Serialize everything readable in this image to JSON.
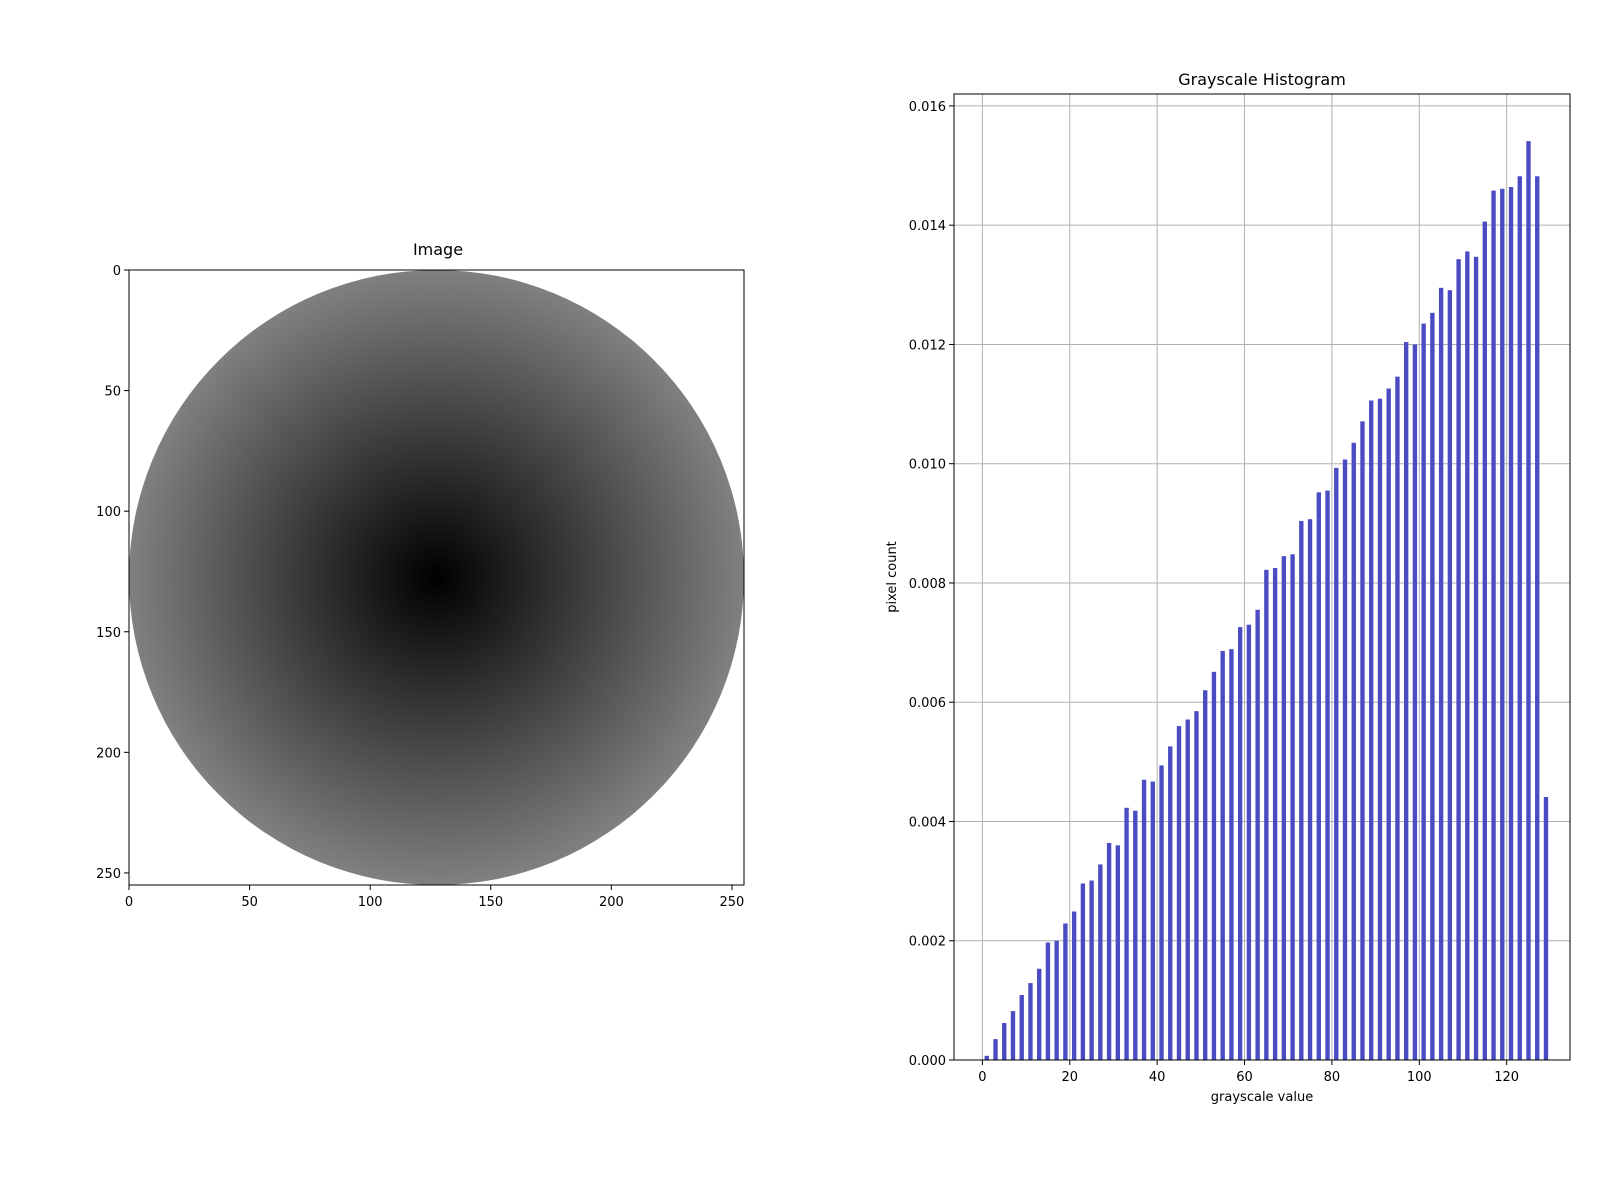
{
  "chart_data": [
    {
      "type": "image",
      "title": "Image",
      "xlim": [
        0,
        255
      ],
      "ylim": [
        255,
        0
      ],
      "x_ticks": [
        0,
        50,
        100,
        150,
        200,
        250
      ],
      "y_ticks": [
        0,
        50,
        100,
        150,
        200,
        250
      ],
      "x_tick_labels": [
        "0",
        "50",
        "100",
        "150",
        "200",
        "250"
      ],
      "y_tick_labels": [
        "0",
        "50",
        "100",
        "150",
        "200",
        "250"
      ],
      "content": {
        "shape": "radial-gradient-disk",
        "center": [
          127.5,
          127.5
        ],
        "radius": 127.5,
        "center_gray": 0,
        "edge_gray": 128,
        "background_gray": 255
      },
      "grid": false
    },
    {
      "type": "bar",
      "title": "Grayscale Histogram",
      "xlabel": "grayscale value",
      "ylabel": "pixel count",
      "xlim": [
        -6.5,
        134.5
      ],
      "ylim": [
        0,
        0.0162
      ],
      "x_ticks": [
        0,
        20,
        40,
        60,
        80,
        100,
        120
      ],
      "x_tick_labels": [
        "0",
        "20",
        "40",
        "60",
        "80",
        "100",
        "120"
      ],
      "y_ticks": [
        0,
        0.002,
        0.004,
        0.006,
        0.008,
        0.01,
        0.012,
        0.014,
        0.016
      ],
      "y_tick_labels": [
        "0.000",
        "0.002",
        "0.004",
        "0.006",
        "0.008",
        "0.010",
        "0.012",
        "0.014",
        "0.016"
      ],
      "bar_width": 1,
      "color": "#4b4bc4",
      "grid": true,
      "x": [
        1,
        3,
        5,
        7,
        9,
        11,
        13,
        15,
        17,
        19,
        21,
        23,
        25,
        27,
        29,
        31,
        33,
        35,
        37,
        39,
        41,
        43,
        45,
        47,
        49,
        51,
        53,
        55,
        57,
        59,
        61,
        63,
        65,
        67,
        69,
        71,
        73,
        75,
        77,
        79,
        81,
        83,
        85,
        87,
        89,
        91,
        93,
        95,
        97,
        99,
        101,
        103,
        105,
        107,
        109,
        111,
        113,
        115,
        117,
        119,
        121,
        123,
        125,
        127,
        129
      ],
      "values": [
        7e-05,
        0.00035,
        0.00062,
        0.00082,
        0.00109,
        0.00129,
        0.00153,
        0.00197,
        0.002,
        0.00229,
        0.00249,
        0.00296,
        0.00301,
        0.00328,
        0.00364,
        0.0036,
        0.00423,
        0.00418,
        0.0047,
        0.00467,
        0.00494,
        0.00526,
        0.0056,
        0.00571,
        0.00585,
        0.0062,
        0.00651,
        0.00686,
        0.00689,
        0.00726,
        0.0073,
        0.00755,
        0.00822,
        0.00825,
        0.00845,
        0.00848,
        0.00904,
        0.00907,
        0.00952,
        0.00955,
        0.00993,
        0.01007,
        0.01035,
        0.01071,
        0.01106,
        0.01109,
        0.01126,
        0.01146,
        0.01204,
        0.012,
        0.01235,
        0.01253,
        0.01295,
        0.01291,
        0.01343,
        0.01356,
        0.01347,
        0.01406,
        0.01458,
        0.01461,
        0.01464,
        0.01482,
        0.01541,
        0.01482,
        0.00441
      ]
    }
  ]
}
